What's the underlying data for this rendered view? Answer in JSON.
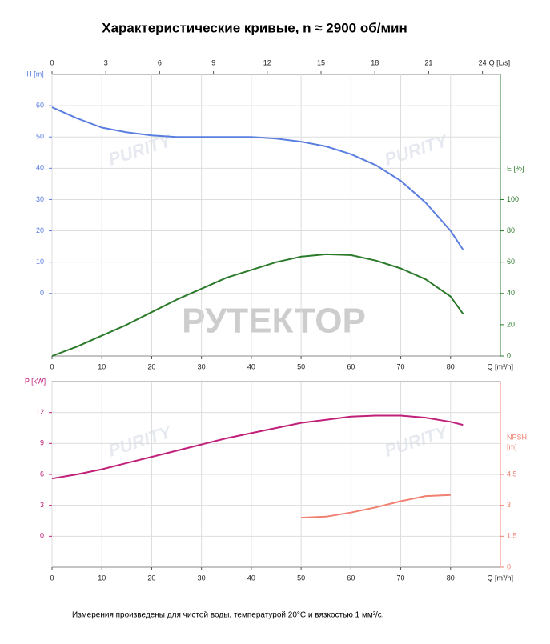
{
  "chart_data": [
    {
      "type": "line",
      "title": "Характеристические кривые, n ≈ 2900 об/мин",
      "xlabel": "Q [m³/h]",
      "xlim": [
        0,
        90
      ],
      "xticks": [
        0,
        10,
        20,
        30,
        40,
        50,
        60,
        70,
        80
      ],
      "x2label": "Q [L/s]",
      "x2lim": [
        0,
        25
      ],
      "x2ticks": [
        0,
        3,
        6,
        9,
        12,
        15,
        18,
        21,
        24
      ],
      "ylabel": "H [m]",
      "ylim": [
        -20,
        70
      ],
      "yticks": [
        0,
        10,
        20,
        30,
        40,
        50,
        60
      ],
      "y2label": "E [%]",
      "y2lim": [
        0,
        180
      ],
      "y2ticks": [
        0,
        20,
        40,
        60,
        80,
        100
      ],
      "grid": true,
      "series": [
        {
          "color": "#5b7fe0",
          "x": [
            0,
            5,
            10,
            15,
            20,
            25,
            30,
            35,
            40,
            45,
            50,
            55,
            60,
            65,
            70,
            75,
            80,
            82.5
          ],
          "values": [
            59.5,
            56,
            53,
            51.5,
            50.5,
            50,
            50,
            50,
            50,
            49.5,
            48.5,
            47,
            44.5,
            41,
            36,
            29,
            20,
            14
          ]
        },
        {
          "color": "#2a7a2a",
          "axis": "y2",
          "x": [
            0,
            5,
            10,
            15,
            20,
            25,
            30,
            35,
            40,
            45,
            50,
            55,
            60,
            65,
            70,
            75,
            80,
            82.5
          ],
          "values": [
            0,
            6,
            13,
            20,
            28,
            36,
            43,
            50,
            55,
            60,
            63.5,
            65,
            64.5,
            61,
            56,
            49,
            38,
            27
          ]
        }
      ],
      "watermark": "РУТЕКТОР",
      "logo": "PURITY"
    },
    {
      "type": "line",
      "xlabel": "Q [m³/h]",
      "xlim": [
        0,
        90
      ],
      "xticks": [
        0,
        10,
        20,
        30,
        40,
        50,
        60,
        70,
        80
      ],
      "ylabel": "P [kW]",
      "ylim": [
        -3,
        15
      ],
      "yticks": [
        0,
        3,
        6,
        9,
        12
      ],
      "y2label": [
        "NPSH",
        "[m]"
      ],
      "y2lim": [
        0,
        9
      ],
      "y2ticks": [
        0,
        1.5,
        3,
        4.5
      ],
      "grid": true,
      "series": [
        {
          "color": "#c0207a",
          "x": [
            0,
            5,
            10,
            15,
            20,
            25,
            30,
            35,
            40,
            45,
            50,
            55,
            60,
            65,
            70,
            75,
            80,
            82.5
          ],
          "values": [
            5.6,
            6.0,
            6.5,
            7.1,
            7.7,
            8.3,
            8.9,
            9.5,
            10.0,
            10.5,
            11.0,
            11.3,
            11.6,
            11.7,
            11.7,
            11.5,
            11.1,
            10.8
          ]
        },
        {
          "color": "#f08070",
          "axis": "y2",
          "x": [
            50,
            55,
            60,
            65,
            70,
            75,
            80
          ],
          "values": [
            2.4,
            2.45,
            2.65,
            2.9,
            3.2,
            3.45,
            3.5
          ]
        }
      ],
      "logo": "PURITY"
    }
  ],
  "note": "Измерения произведены для чистой воды, температурой 20°C и вязкостью 1 мм²/с."
}
